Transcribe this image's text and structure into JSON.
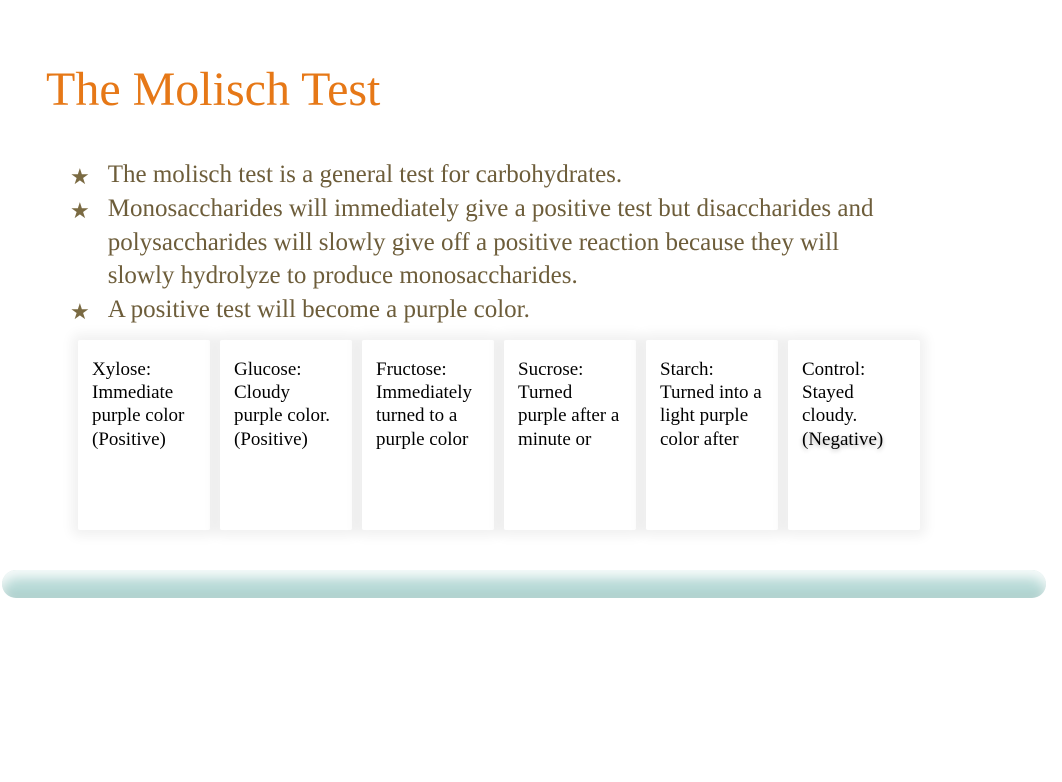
{
  "title": {
    "text": "The Molisch Test",
    "color": "#e67817",
    "fontsize": 48
  },
  "bullets": {
    "star_color": "#7a6a42",
    "text_color": "#6d5d3a",
    "items": [
      "The molisch test is a general test for carbohydrates.",
      "Monosaccharides will immediately give a positive test but disaccharides and polysaccharides will slowly give off a positive reaction because they will slowly hydrolyze to produce monosaccharides.",
      "A positive test will become a purple color."
    ]
  },
  "cards": [
    {
      "text": "Xylose: Immediate purple color (Positive)",
      "shadow": false
    },
    {
      "text": "Glucose: Cloudy purple color. (Positive)",
      "shadow": false
    },
    {
      "text": "Fructose: Immediately turned to a purple color",
      "shadow": false
    },
    {
      "text": "Sucrose: Turned purple after a minute or",
      "shadow": false
    },
    {
      "text": "Starch: Turned into a light purple color after",
      "shadow": false
    },
    {
      "text": "Control: Stayed cloudy. ",
      "shadow": false,
      "extra": "(Negative)",
      "extra_shadow": true
    }
  ],
  "card_text_color": "#000000",
  "bottom_bar_color": "#b6d9d6",
  "background_color": "#ffffff"
}
